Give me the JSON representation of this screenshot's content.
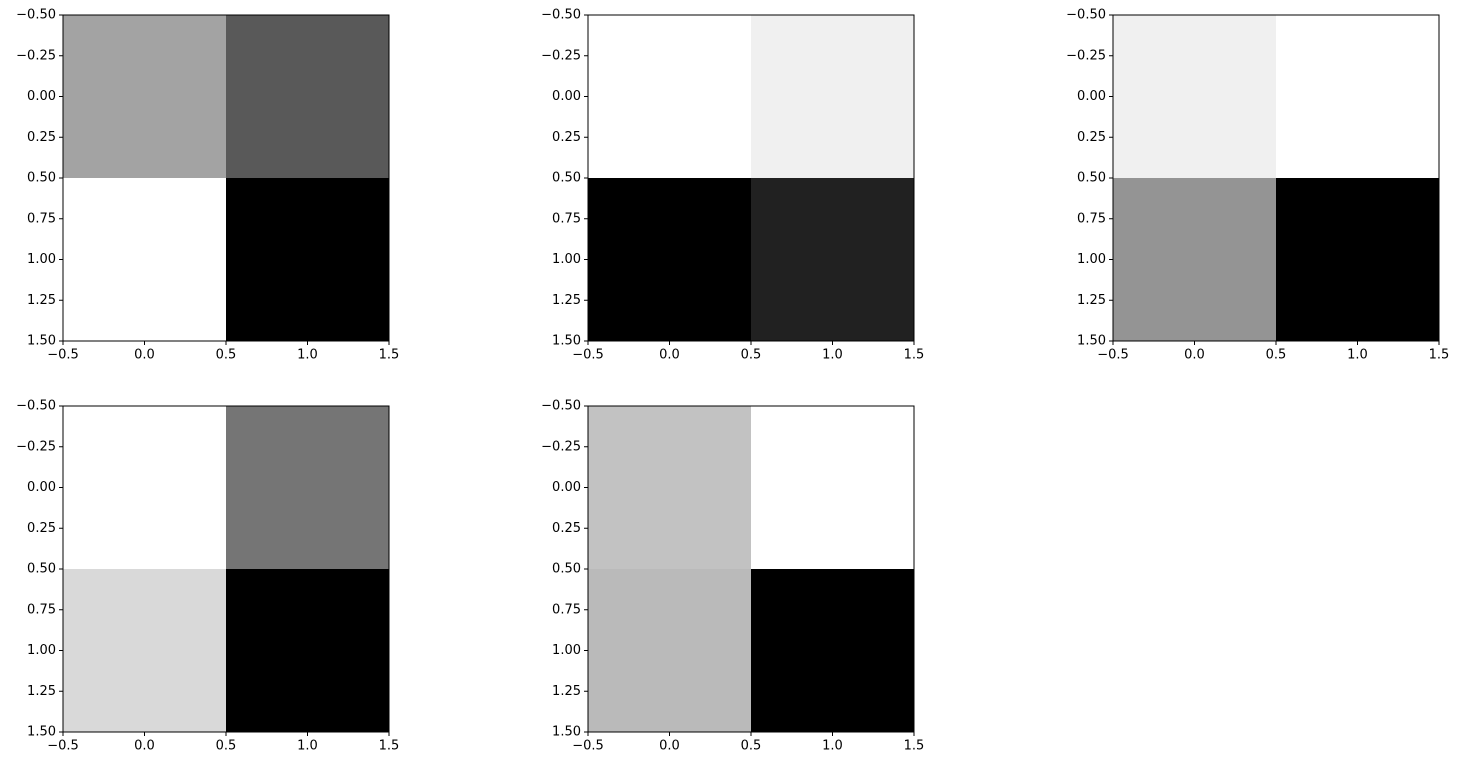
{
  "chart_data": [
    {
      "type": "heatmap",
      "cmap": "gray",
      "values": [
        [
          0.64,
          0.35
        ],
        [
          1,
          0
        ]
      ],
      "xlim": [
        -0.5,
        1.5
      ],
      "ylim": [
        1.5,
        -0.5
      ],
      "xticks": [
        {
          "value": -0.5,
          "label": "−0.5"
        },
        {
          "value": 0,
          "label": "0.0"
        },
        0.5,
        {
          "value": 1,
          "label": "1.0"
        },
        1.5
      ],
      "yticks": [
        {
          "value": -0.5,
          "label": "−0.50"
        },
        {
          "value": -0.25,
          "label": "−0.25"
        },
        {
          "value": 0,
          "label": "0.00"
        },
        0.25,
        {
          "value": 0.5,
          "label": "0.50"
        },
        0.75,
        {
          "value": 1,
          "label": "1.00"
        },
        1.25,
        {
          "value": 1.5,
          "label": "1.50"
        }
      ]
    },
    {
      "type": "heatmap",
      "cmap": "gray",
      "values": [
        [
          1,
          0.94
        ],
        [
          0,
          0.13
        ]
      ],
      "xlim": [
        -0.5,
        1.5
      ],
      "ylim": [
        1.5,
        -0.5
      ],
      "xticks": [
        {
          "value": -0.5,
          "label": "−0.5"
        },
        {
          "value": 0,
          "label": "0.0"
        },
        0.5,
        {
          "value": 1,
          "label": "1.0"
        },
        1.5
      ],
      "yticks": [
        {
          "value": -0.5,
          "label": "−0.50"
        },
        {
          "value": -0.25,
          "label": "−0.25"
        },
        {
          "value": 0,
          "label": "0.00"
        },
        0.25,
        {
          "value": 0.5,
          "label": "0.50"
        },
        0.75,
        {
          "value": 1,
          "label": "1.00"
        },
        1.25,
        {
          "value": 1.5,
          "label": "1.50"
        }
      ]
    },
    {
      "type": "heatmap",
      "cmap": "gray",
      "values": [
        [
          0.94,
          1
        ],
        [
          0.58,
          0
        ]
      ],
      "xlim": [
        -0.5,
        1.5
      ],
      "ylim": [
        1.5,
        -0.5
      ],
      "xticks": [
        {
          "value": -0.5,
          "label": "−0.5"
        },
        {
          "value": 0,
          "label": "0.0"
        },
        0.5,
        {
          "value": 1,
          "label": "1.0"
        },
        1.5
      ],
      "yticks": [
        {
          "value": -0.5,
          "label": "−0.50"
        },
        {
          "value": -0.25,
          "label": "−0.25"
        },
        {
          "value": 0,
          "label": "0.00"
        },
        0.25,
        {
          "value": 0.5,
          "label": "0.50"
        },
        0.75,
        {
          "value": 1,
          "label": "1.00"
        },
        1.25,
        {
          "value": 1.5,
          "label": "1.50"
        }
      ]
    },
    {
      "type": "heatmap",
      "cmap": "gray",
      "values": [
        [
          1,
          0.46
        ],
        [
          0.85,
          0
        ]
      ],
      "xlim": [
        -0.5,
        1.5
      ],
      "ylim": [
        1.5,
        -0.5
      ],
      "xticks": [
        {
          "value": -0.5,
          "label": "−0.5"
        },
        {
          "value": 0,
          "label": "0.0"
        },
        0.5,
        {
          "value": 1,
          "label": "1.0"
        },
        1.5
      ],
      "yticks": [
        {
          "value": -0.5,
          "label": "−0.50"
        },
        {
          "value": -0.25,
          "label": "−0.25"
        },
        {
          "value": 0,
          "label": "0.00"
        },
        0.25,
        {
          "value": 0.5,
          "label": "0.50"
        },
        0.75,
        {
          "value": 1,
          "label": "1.00"
        },
        1.25,
        {
          "value": 1.5,
          "label": "1.50"
        }
      ]
    },
    {
      "type": "heatmap",
      "cmap": "gray",
      "values": [
        [
          0.76,
          1
        ],
        [
          0.73,
          0
        ]
      ],
      "xlim": [
        -0.5,
        1.5
      ],
      "ylim": [
        1.5,
        -0.5
      ],
      "xticks": [
        {
          "value": -0.5,
          "label": "−0.5"
        },
        {
          "value": 0,
          "label": "0.0"
        },
        0.5,
        {
          "value": 1,
          "label": "1.0"
        },
        1.5
      ],
      "yticks": [
        {
          "value": -0.5,
          "label": "−0.50"
        },
        {
          "value": -0.25,
          "label": "−0.25"
        },
        {
          "value": 0,
          "label": "0.00"
        },
        0.25,
        {
          "value": 0.5,
          "label": "0.50"
        },
        0.75,
        {
          "value": 1,
          "label": "1.00"
        },
        1.25,
        {
          "value": 1.5,
          "label": "1.50"
        }
      ]
    }
  ]
}
